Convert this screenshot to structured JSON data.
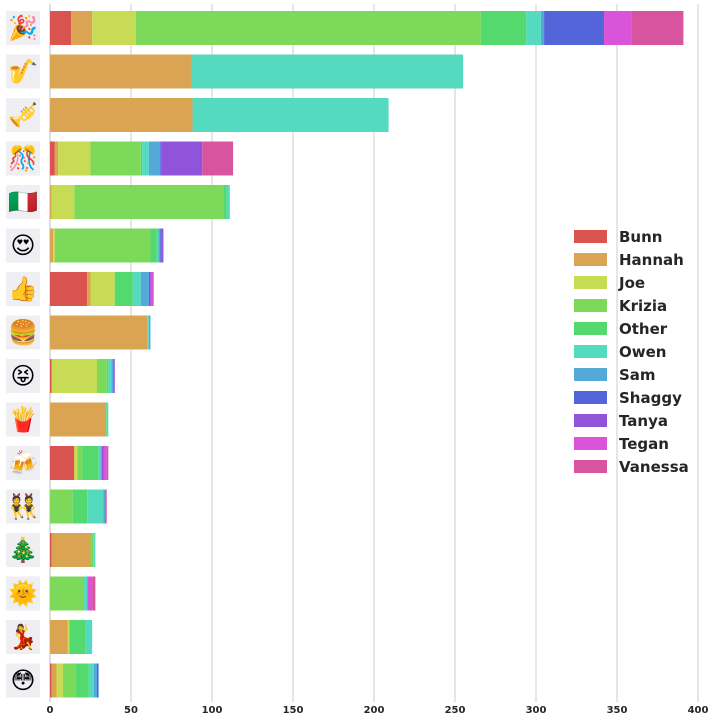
{
  "chart_data": {
    "type": "bar",
    "orientation": "horizontal",
    "stacked": true,
    "categories": [
      "party-popper",
      "saxophone",
      "trumpet",
      "confetti-ball",
      "italy-flag",
      "heart-eyes",
      "thumbs-up",
      "hamburger",
      "squinting-tongue",
      "fries",
      "beer-mugs",
      "dancers",
      "christmas-tree",
      "sun-with-face",
      "dancer",
      "flushed-face"
    ],
    "category_glyphs": [
      "🎉",
      "🎷",
      "🎺",
      "🎊",
      "🇮🇹",
      "😍",
      "👍",
      "🍔",
      "😝",
      "🍟",
      "🍻",
      "👯",
      "🎄",
      "🌞",
      "💃",
      "😳"
    ],
    "xlim": [
      0,
      400
    ],
    "xticks": [
      0,
      50,
      100,
      150,
      200,
      250,
      300,
      350,
      400
    ],
    "grid": "vertical",
    "legend_position": "center-right",
    "series": [
      {
        "name": "Bunn",
        "color": "#d9544f",
        "values": [
          13,
          0,
          0,
          3,
          0,
          0,
          23,
          0,
          1,
          0,
          15,
          0,
          1,
          0,
          0,
          1
        ]
      },
      {
        "name": "Hannah",
        "color": "#daa452",
        "values": [
          13,
          87,
          88,
          2,
          1,
          2,
          2,
          60,
          0,
          34,
          0,
          0,
          24,
          0,
          11,
          3
        ]
      },
      {
        "name": "Joe",
        "color": "#c8db54",
        "values": [
          27,
          0,
          0,
          20,
          14,
          1,
          15,
          0,
          28,
          0,
          2,
          0,
          0,
          0,
          1,
          4
        ]
      },
      {
        "name": "Krizia",
        "color": "#7dd959",
        "values": [
          213,
          0,
          0,
          31,
          92,
          59,
          0,
          0,
          6,
          0,
          3,
          14,
          2,
          21,
          0,
          8
        ]
      },
      {
        "name": "Other",
        "color": "#54d96f",
        "values": [
          28,
          0,
          0,
          1,
          2,
          4,
          11,
          0,
          1,
          1,
          10,
          9,
          0,
          0,
          10,
          8
        ]
      },
      {
        "name": "Owen",
        "color": "#54dbbf",
        "values": [
          9,
          168,
          121,
          4,
          2,
          1,
          5,
          1,
          2,
          1,
          1,
          10,
          1,
          2,
          4,
          3
        ]
      },
      {
        "name": "Sam",
        "color": "#54a9d9",
        "values": [
          2,
          0,
          0,
          7,
          0,
          1,
          5,
          1,
          1,
          0,
          1,
          1,
          0,
          0,
          0,
          2
        ]
      },
      {
        "name": "Shaggy",
        "color": "#5465d9",
        "values": [
          37,
          0,
          0,
          1,
          0,
          1,
          1,
          0,
          0,
          0,
          0,
          0,
          0,
          0,
          0,
          1
        ]
      },
      {
        "name": "Tanya",
        "color": "#8f54d9",
        "values": [
          0,
          0,
          0,
          25,
          0,
          1,
          0,
          0,
          1,
          0,
          1,
          0,
          0,
          0,
          0,
          0
        ]
      },
      {
        "name": "Tegan",
        "color": "#d954d9",
        "values": [
          17,
          0,
          0,
          0,
          0,
          0,
          2,
          0,
          0,
          0,
          2,
          0,
          0,
          3,
          0,
          0
        ]
      },
      {
        "name": "Vanessa",
        "color": "#d9549e",
        "values": [
          32,
          0,
          0,
          19,
          0,
          0,
          0,
          0,
          0,
          0,
          1,
          1,
          0,
          2,
          0,
          0
        ]
      }
    ]
  }
}
